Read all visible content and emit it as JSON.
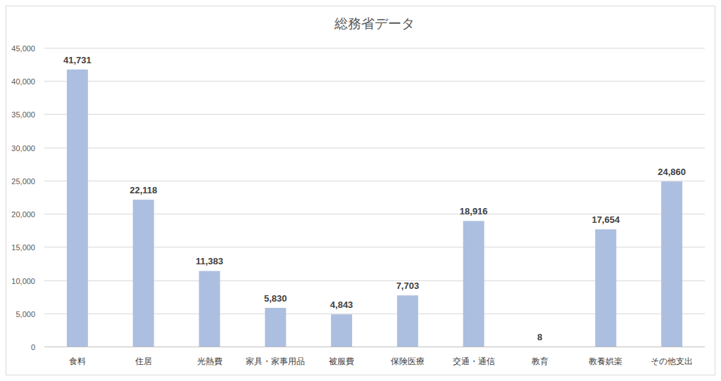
{
  "chart_data": {
    "type": "bar",
    "title": "総務省データ",
    "categories": [
      "食料",
      "住居",
      "光熱費",
      "家具・家事用品",
      "被服費",
      "保険医療",
      "交通・通信",
      "教育",
      "教養娯楽",
      "その他支出"
    ],
    "values": [
      41731,
      22118,
      11383,
      5830,
      4843,
      7703,
      18916,
      8,
      17654,
      24860
    ],
    "value_labels": [
      "41,731",
      "22,118",
      "11,383",
      "5,830",
      "4,843",
      "7,703",
      "18,916",
      "8",
      "17,654",
      "24,860"
    ],
    "color": "#adbfe0",
    "ylim": [
      0,
      45000
    ],
    "yticks": [
      0,
      {
        "value": 5000,
        "label": "5,000"
      },
      {
        "value": 10000,
        "label": "10,000"
      },
      {
        "value": 15000,
        "label": "15,000"
      },
      {
        "value": 20000,
        "label": "20,000"
      },
      {
        "value": 25000,
        "label": "25,000"
      },
      {
        "value": 30000,
        "label": "30,000"
      },
      {
        "value": 35000,
        "label": "35,000"
      },
      {
        "value": 40000,
        "label": "40,000"
      },
      {
        "value": 45000,
        "label": "45,000"
      }
    ],
    "grid": true,
    "data_labels": true
  }
}
